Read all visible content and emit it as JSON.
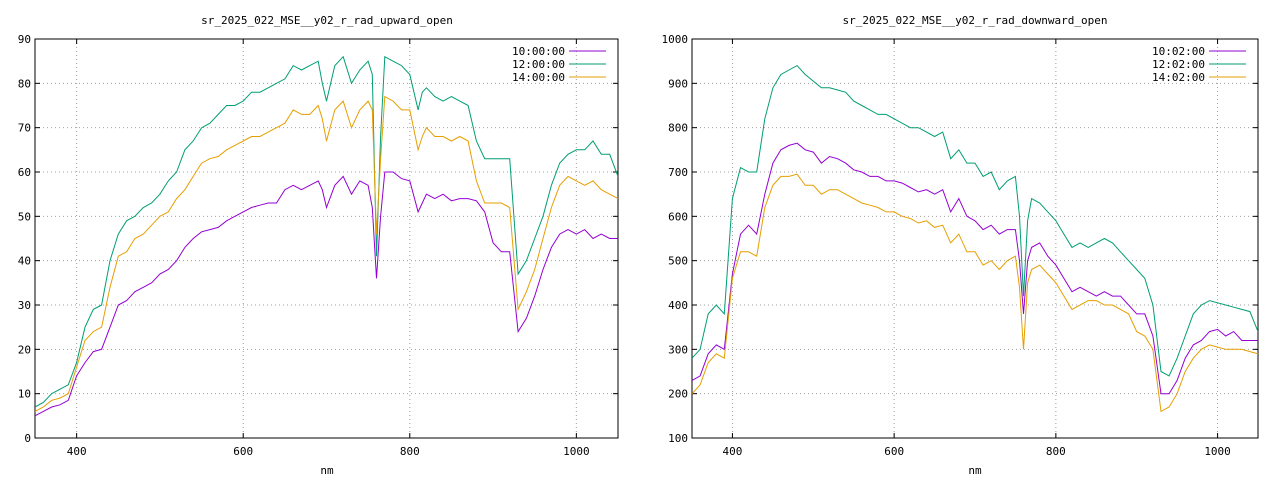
{
  "chart_data": [
    {
      "type": "line",
      "title": "sr_2025_022_MSE__y02_r_rad_upward_open",
      "xlabel": "nm",
      "ylabel": "",
      "xlim": [
        350,
        1050
      ],
      "ylim": [
        0,
        90
      ],
      "xticks": [
        400,
        600,
        800,
        1000
      ],
      "yticks": [
        0,
        10,
        20,
        30,
        40,
        50,
        60,
        70,
        80,
        90
      ],
      "grid": true,
      "legend_position": "top-right",
      "series": [
        {
          "name": "10:00:00",
          "color": "#9400d3",
          "x": [
            350,
            360,
            370,
            380,
            390,
            400,
            410,
            420,
            430,
            440,
            450,
            460,
            470,
            480,
            490,
            500,
            510,
            520,
            530,
            540,
            550,
            560,
            570,
            580,
            590,
            600,
            610,
            620,
            630,
            640,
            650,
            660,
            670,
            680,
            690,
            695,
            700,
            710,
            720,
            730,
            740,
            750,
            755,
            760,
            765,
            770,
            780,
            790,
            800,
            810,
            815,
            820,
            830,
            840,
            850,
            860,
            870,
            880,
            890,
            900,
            910,
            920,
            930,
            940,
            950,
            960,
            970,
            980,
            990,
            1000,
            1010,
            1020,
            1030,
            1040,
            1050
          ],
          "y": [
            5,
            6,
            7,
            7.5,
            8.5,
            14,
            17,
            19.5,
            20,
            25,
            30,
            31,
            33,
            34,
            35,
            37,
            38,
            40,
            43,
            45,
            46.5,
            47,
            47.5,
            49,
            50,
            51,
            52,
            52.5,
            53,
            53,
            56,
            57,
            56,
            57,
            58,
            56,
            52,
            57,
            59,
            55,
            58,
            57,
            52,
            36,
            50,
            60,
            60,
            58.5,
            58,
            51,
            53,
            55,
            54,
            55,
            53.5,
            54,
            54,
            53.5,
            51,
            44,
            42,
            42,
            24,
            27,
            32,
            38,
            43,
            46,
            47,
            46,
            47,
            45,
            46,
            45,
            45
          ]
        },
        {
          "name": "12:00:00",
          "color": "#009e73",
          "x": [
            350,
            360,
            370,
            380,
            390,
            400,
            410,
            420,
            430,
            440,
            450,
            460,
            470,
            480,
            490,
            500,
            510,
            520,
            530,
            540,
            550,
            560,
            570,
            580,
            590,
            600,
            610,
            620,
            630,
            640,
            650,
            660,
            670,
            680,
            690,
            695,
            700,
            710,
            720,
            730,
            740,
            750,
            755,
            760,
            765,
            770,
            780,
            790,
            800,
            810,
            815,
            820,
            830,
            840,
            850,
            860,
            870,
            880,
            890,
            900,
            910,
            920,
            930,
            940,
            950,
            960,
            970,
            980,
            990,
            1000,
            1010,
            1020,
            1030,
            1040,
            1050
          ],
          "y": [
            7,
            8,
            10,
            11,
            12,
            17,
            25,
            29,
            30,
            40,
            46,
            49,
            50,
            52,
            53,
            55,
            58,
            60,
            65,
            67,
            70,
            71,
            73,
            75,
            75,
            76,
            78,
            78,
            79,
            80,
            81,
            84,
            83,
            84,
            85,
            80,
            76,
            84,
            86,
            80,
            83,
            85,
            82,
            41,
            68,
            86,
            85,
            84,
            82,
            74,
            78,
            79,
            77,
            76,
            77,
            76,
            75,
            67,
            63,
            63,
            63,
            63,
            37,
            40,
            45,
            50,
            57,
            62,
            64,
            65,
            65,
            67,
            64,
            64,
            59
          ]
        },
        {
          "name": "14:00:00",
          "color": "#e69f00",
          "x": [
            350,
            360,
            370,
            380,
            390,
            400,
            410,
            420,
            430,
            440,
            450,
            460,
            470,
            480,
            490,
            500,
            510,
            520,
            530,
            540,
            550,
            560,
            570,
            580,
            590,
            600,
            610,
            620,
            630,
            640,
            650,
            660,
            670,
            680,
            690,
            695,
            700,
            710,
            720,
            730,
            740,
            750,
            755,
            760,
            765,
            770,
            780,
            790,
            800,
            810,
            815,
            820,
            830,
            840,
            850,
            860,
            870,
            880,
            890,
            900,
            910,
            920,
            930,
            940,
            950,
            960,
            970,
            980,
            990,
            1000,
            1010,
            1020,
            1030,
            1040,
            1050
          ],
          "y": [
            6,
            7,
            8.5,
            9,
            10,
            16,
            22,
            24,
            25,
            34,
            41,
            42,
            45,
            46,
            48,
            50,
            51,
            54,
            56,
            59,
            62,
            63,
            63.5,
            65,
            66,
            67,
            68,
            68,
            69,
            70,
            71,
            74,
            73,
            73,
            75,
            72,
            67,
            74,
            76,
            70,
            74,
            76,
            74,
            46,
            63,
            77,
            76,
            74,
            74,
            65,
            68,
            70,
            68,
            68,
            67,
            68,
            67,
            58,
            53,
            53,
            53,
            52,
            29,
            33,
            38,
            45,
            52,
            57,
            59,
            58,
            57,
            58,
            56,
            55,
            54
          ]
        }
      ]
    },
    {
      "type": "line",
      "title": "sr_2025_022_MSE__y02_r_rad_downward_open",
      "xlabel": "nm",
      "ylabel": "",
      "xlim": [
        350,
        1050
      ],
      "ylim": [
        100,
        1000
      ],
      "xticks": [
        400,
        600,
        800,
        1000
      ],
      "yticks": [
        100,
        200,
        300,
        400,
        500,
        600,
        700,
        800,
        900,
        1000
      ],
      "grid": true,
      "legend_position": "top-right",
      "series": [
        {
          "name": "10:02:00",
          "color": "#9400d3",
          "x": [
            350,
            360,
            370,
            380,
            390,
            400,
            410,
            420,
            430,
            440,
            450,
            460,
            470,
            480,
            490,
            500,
            510,
            520,
            530,
            540,
            550,
            560,
            570,
            580,
            590,
            600,
            610,
            620,
            630,
            640,
            650,
            660,
            670,
            680,
            690,
            700,
            710,
            720,
            730,
            740,
            750,
            755,
            760,
            765,
            770,
            780,
            790,
            800,
            810,
            820,
            830,
            840,
            850,
            860,
            870,
            880,
            890,
            900,
            910,
            920,
            930,
            940,
            950,
            960,
            970,
            980,
            990,
            1000,
            1010,
            1020,
            1030,
            1040,
            1050
          ],
          "y": [
            230,
            240,
            290,
            310,
            300,
            470,
            560,
            580,
            560,
            650,
            720,
            750,
            760,
            765,
            750,
            745,
            720,
            735,
            730,
            720,
            705,
            700,
            690,
            690,
            680,
            680,
            675,
            665,
            655,
            660,
            650,
            660,
            610,
            640,
            600,
            590,
            570,
            580,
            560,
            570,
            570,
            500,
            380,
            500,
            530,
            540,
            510,
            490,
            460,
            430,
            440,
            430,
            420,
            430,
            420,
            420,
            400,
            380,
            380,
            330,
            200,
            200,
            230,
            280,
            310,
            320,
            340,
            345,
            330,
            340,
            320,
            320,
            320
          ]
        },
        {
          "name": "12:02:00",
          "color": "#009e73",
          "x": [
            350,
            360,
            370,
            380,
            390,
            400,
            410,
            420,
            430,
            440,
            450,
            460,
            470,
            480,
            490,
            500,
            510,
            520,
            530,
            540,
            550,
            560,
            570,
            580,
            590,
            600,
            610,
            620,
            630,
            640,
            650,
            660,
            670,
            680,
            690,
            700,
            710,
            720,
            730,
            740,
            750,
            755,
            760,
            765,
            770,
            780,
            790,
            800,
            810,
            820,
            830,
            840,
            850,
            860,
            870,
            880,
            890,
            900,
            910,
            920,
            930,
            940,
            950,
            960,
            970,
            980,
            990,
            1000,
            1010,
            1020,
            1030,
            1040,
            1050
          ],
          "y": [
            280,
            300,
            380,
            400,
            380,
            640,
            710,
            700,
            700,
            820,
            890,
            920,
            930,
            940,
            920,
            905,
            890,
            890,
            885,
            880,
            860,
            850,
            840,
            830,
            830,
            820,
            810,
            800,
            800,
            790,
            780,
            790,
            730,
            750,
            720,
            720,
            690,
            700,
            660,
            680,
            690,
            600,
            420,
            590,
            640,
            630,
            610,
            590,
            560,
            530,
            540,
            530,
            540,
            550,
            540,
            520,
            500,
            480,
            460,
            400,
            250,
            240,
            280,
            330,
            380,
            400,
            410,
            405,
            400,
            395,
            390,
            385,
            340
          ]
        },
        {
          "name": "14:02:00",
          "color": "#e69f00",
          "x": [
            350,
            360,
            370,
            380,
            390,
            400,
            410,
            420,
            430,
            440,
            450,
            460,
            470,
            480,
            490,
            500,
            510,
            520,
            530,
            540,
            550,
            560,
            570,
            580,
            590,
            600,
            610,
            620,
            630,
            640,
            650,
            660,
            670,
            680,
            690,
            700,
            710,
            720,
            730,
            740,
            750,
            755,
            760,
            765,
            770,
            780,
            790,
            800,
            810,
            820,
            830,
            840,
            850,
            860,
            870,
            880,
            890,
            900,
            910,
            920,
            930,
            940,
            950,
            960,
            970,
            980,
            990,
            1000,
            1010,
            1020,
            1030,
            1040,
            1050
          ],
          "y": [
            200,
            220,
            270,
            290,
            280,
            460,
            520,
            520,
            510,
            620,
            670,
            690,
            690,
            695,
            670,
            670,
            650,
            660,
            660,
            650,
            640,
            630,
            625,
            620,
            610,
            610,
            600,
            595,
            585,
            590,
            575,
            580,
            540,
            560,
            520,
            520,
            490,
            500,
            480,
            500,
            510,
            440,
            300,
            450,
            480,
            490,
            470,
            450,
            420,
            390,
            400,
            410,
            410,
            400,
            400,
            390,
            380,
            340,
            330,
            300,
            160,
            170,
            200,
            250,
            280,
            300,
            310,
            305,
            300,
            300,
            300,
            295,
            290
          ]
        }
      ]
    }
  ]
}
